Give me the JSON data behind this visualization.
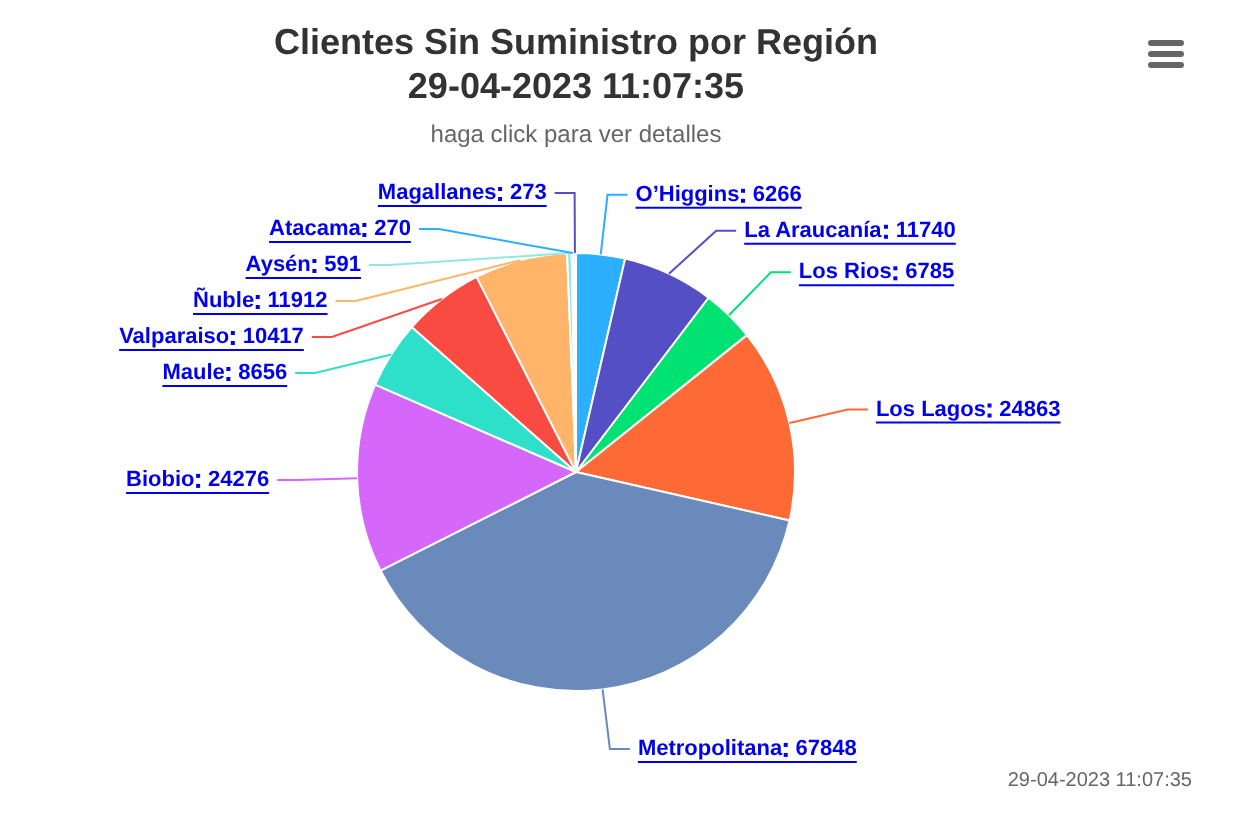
{
  "chart_data": {
    "type": "pie",
    "title": "Clientes Sin Suministro por Región\n29-04-2023 11:07:35",
    "subtitle": "haga click para ver detalles",
    "categories": [
      "O’Higgins",
      "La Araucanía",
      "Los Rios",
      "Los Lagos",
      "Metropolitana",
      "Biobio",
      "Maule",
      "Valparaiso",
      "Ñuble",
      "Aysén",
      "Atacama",
      "Magallanes"
    ],
    "values": [
      6266,
      11740,
      6785,
      24863,
      67848,
      24276,
      8656,
      10417,
      11912,
      591,
      270,
      273
    ],
    "colors": [
      "#2caffe",
      "#544fc5",
      "#00e272",
      "#fe6a35",
      "#6b8abc",
      "#d568fb",
      "#2ee0ca",
      "#fa4b42",
      "#feb56a",
      "#91e8e1",
      "#2caffe",
      "#544fc5"
    ],
    "data_labels": true,
    "legend": false,
    "annotations": [
      "29-04-2023 11:07:35"
    ]
  }
}
